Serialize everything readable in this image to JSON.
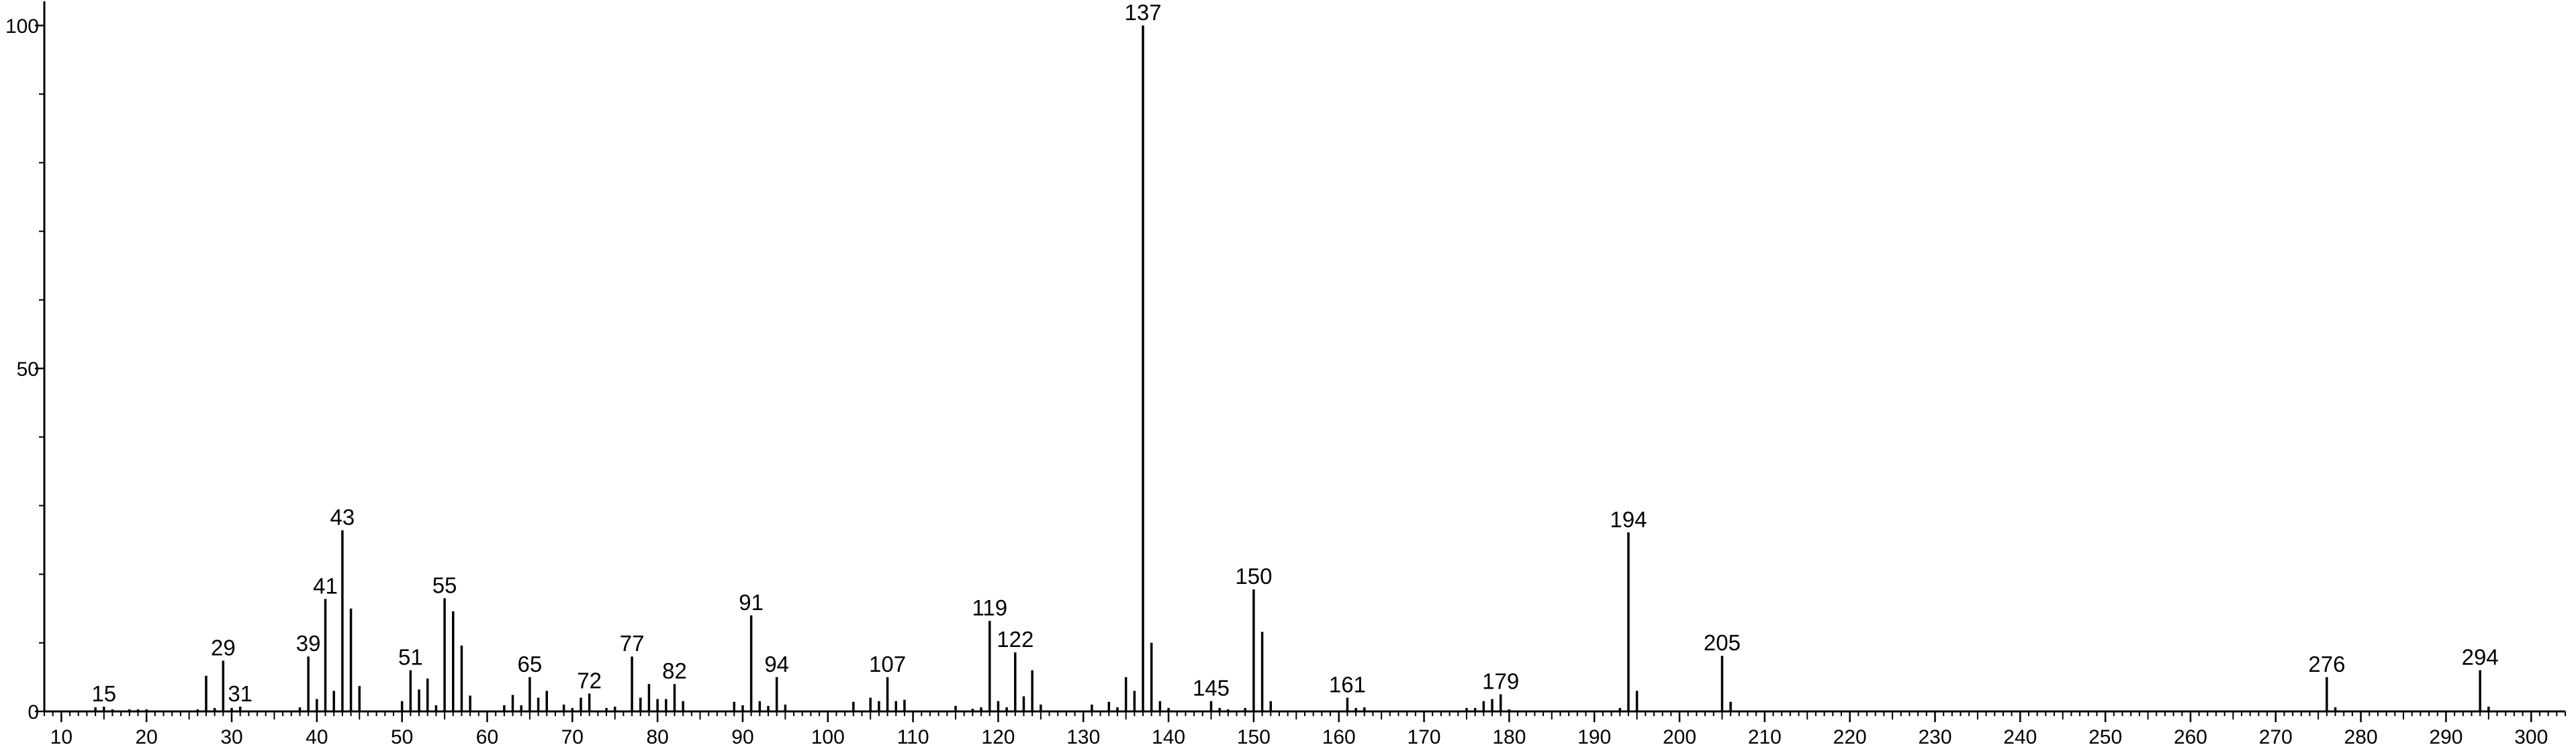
{
  "chart_data": {
    "type": "bar",
    "title": "",
    "xlabel": "",
    "ylabel": "",
    "xlim": [
      8,
      304
    ],
    "ylim": [
      0,
      100
    ],
    "x_ticks": [
      10,
      20,
      30,
      40,
      50,
      60,
      70,
      80,
      90,
      100,
      110,
      120,
      130,
      140,
      150,
      160,
      170,
      180,
      190,
      200,
      210,
      220,
      230,
      240,
      250,
      260,
      270,
      280,
      290,
      300
    ],
    "y_ticks": [
      0,
      50,
      100
    ],
    "grid": false,
    "legend": "none",
    "x": [
      14,
      15,
      16,
      18,
      19,
      20,
      26,
      27,
      28,
      29,
      30,
      31,
      38,
      39,
      40,
      41,
      42,
      43,
      44,
      45,
      50,
      51,
      52,
      53,
      54,
      55,
      56,
      57,
      58,
      62,
      63,
      64,
      65,
      66,
      67,
      69,
      70,
      71,
      72,
      74,
      75,
      77,
      78,
      79,
      80,
      81,
      82,
      83,
      89,
      90,
      91,
      92,
      93,
      94,
      95,
      103,
      105,
      106,
      107,
      108,
      109,
      115,
      117,
      118,
      119,
      120,
      121,
      122,
      123,
      124,
      125,
      131,
      133,
      134,
      135,
      136,
      137,
      138,
      139,
      140,
      145,
      146,
      147,
      149,
      150,
      151,
      152,
      161,
      162,
      163,
      175,
      176,
      177,
      178,
      179,
      180,
      193,
      194,
      195,
      205,
      206,
      276,
      277,
      294,
      295
    ],
    "values": [
      0.6,
      0.7,
      0.3,
      0.3,
      0.3,
      0.3,
      0.3,
      5.2,
      0.5,
      7.4,
      0.5,
      0.7,
      0.6,
      8.0,
      1.8,
      16.4,
      3.0,
      26.4,
      15.0,
      3.7,
      1.5,
      6.0,
      3.2,
      4.8,
      0.9,
      16.5,
      14.6,
      9.6,
      2.3,
      0.9,
      2.4,
      0.9,
      5.0,
      2.0,
      3.0,
      1.0,
      0.5,
      2.0,
      2.6,
      0.5,
      0.7,
      8.0,
      2.0,
      4.0,
      1.8,
      1.8,
      4.0,
      1.5,
      1.4,
      0.9,
      14.0,
      1.5,
      0.8,
      5.0,
      1.0,
      1.4,
      2.0,
      1.5,
      5.0,
      1.5,
      1.7,
      0.8,
      0.4,
      0.6,
      13.2,
      1.5,
      0.6,
      8.6,
      2.2,
      6.0,
      1.0,
      1.0,
      1.4,
      0.6,
      5.0,
      3.0,
      100,
      10.0,
      1.5,
      0.5,
      1.5,
      0.5,
      0.3,
      0.5,
      17.8,
      11.6,
      1.5,
      2.0,
      0.5,
      0.6,
      0.5,
      0.5,
      1.5,
      1.8,
      2.5,
      0.3,
      0.5,
      26.1,
      3.0,
      8.1,
      1.4,
      5.0,
      0.6,
      6.0,
      0.7
    ],
    "peak_labels": [
      {
        "x": 15,
        "text": "15"
      },
      {
        "x": 29,
        "text": "29"
      },
      {
        "x": 31,
        "text": "31"
      },
      {
        "x": 39,
        "text": "39"
      },
      {
        "x": 41,
        "text": "41"
      },
      {
        "x": 43,
        "text": "43"
      },
      {
        "x": 51,
        "text": "51"
      },
      {
        "x": 55,
        "text": "55"
      },
      {
        "x": 65,
        "text": "65"
      },
      {
        "x": 72,
        "text": "72"
      },
      {
        "x": 77,
        "text": "77"
      },
      {
        "x": 82,
        "text": "82"
      },
      {
        "x": 91,
        "text": "91"
      },
      {
        "x": 94,
        "text": "94"
      },
      {
        "x": 107,
        "text": "107"
      },
      {
        "x": 119,
        "text": "119"
      },
      {
        "x": 122,
        "text": "122"
      },
      {
        "x": 137,
        "text": "137"
      },
      {
        "x": 145,
        "text": "145"
      },
      {
        "x": 150,
        "text": "150"
      },
      {
        "x": 161,
        "text": "161"
      },
      {
        "x": 179,
        "text": "179"
      },
      {
        "x": 194,
        "text": "194"
      },
      {
        "x": 205,
        "text": "205"
      },
      {
        "x": 276,
        "text": "276"
      },
      {
        "x": 294,
        "text": "294"
      }
    ]
  }
}
